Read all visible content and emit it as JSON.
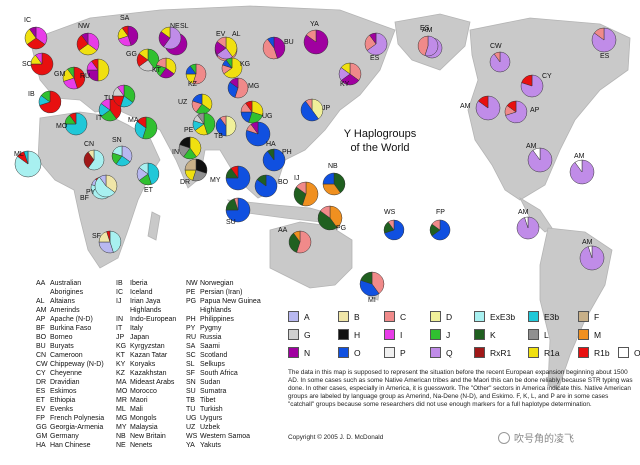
{
  "title_line1": "Y Haplogroups",
  "title_line2": "of the World",
  "colors": {
    "A": "#b8b8f0",
    "B": "#f0e6a8",
    "C": "#f08a8a",
    "D": "#f0f09a",
    "ExE3b": "#a8f0f0",
    "E3b": "#20c8d8",
    "F": "#c8b088",
    "G": "#d0d0d0",
    "H": "#101010",
    "I": "#e83ce8",
    "J": "#30c030",
    "K": "#206020",
    "L": "#909090",
    "M": "#f09020",
    "N": "#a000a0",
    "O": "#1050e0",
    "P": "#f0f0f0",
    "Q": "#c08ce8",
    "RxR1": "#a01818",
    "R1a": "#f0e010",
    "R1b": "#e81010",
    "Other": "#ffffff"
  },
  "legend": [
    {
      "key": "A",
      "label": "A"
    },
    {
      "key": "B",
      "label": "B"
    },
    {
      "key": "C",
      "label": "C"
    },
    {
      "key": "D",
      "label": "D"
    },
    {
      "key": "ExE3b",
      "label": "ExE3b"
    },
    {
      "key": "E3b",
      "label": "E3b"
    },
    {
      "key": "F",
      "label": "F"
    },
    {
      "key": "G",
      "label": "G"
    },
    {
      "key": "H",
      "label": "H"
    },
    {
      "key": "I",
      "label": "I"
    },
    {
      "key": "J",
      "label": "J"
    },
    {
      "key": "K",
      "label": "K"
    },
    {
      "key": "L",
      "label": "L"
    },
    {
      "key": "M",
      "label": "M"
    },
    {
      "key": "N",
      "label": "N"
    },
    {
      "key": "O",
      "label": "O"
    },
    {
      "key": "P",
      "label": "P"
    },
    {
      "key": "Q",
      "label": "Q"
    },
    {
      "key": "RxR1",
      "label": "RxR1"
    },
    {
      "key": "R1a",
      "label": "R1a"
    },
    {
      "key": "R1b",
      "label": "R1b"
    },
    {
      "key": "Other",
      "label": "Other"
    }
  ],
  "abbreviations_col1": [
    [
      "AA",
      "Australian"
    ],
    [
      "",
      "Aborigines"
    ],
    [
      "AL",
      "Altaians"
    ],
    [
      "AM",
      "Amerinds"
    ],
    [
      "AP",
      "Apache (N-D)"
    ],
    [
      "BF",
      "Burkina Faso"
    ],
    [
      "BO",
      "Borneo"
    ],
    [
      "BU",
      "Buryats"
    ],
    [
      "CN",
      "Cameroon"
    ],
    [
      "CW",
      "Chippeway (N-D)"
    ],
    [
      "CY",
      "Cheyenne"
    ],
    [
      "DR",
      "Dravidian"
    ],
    [
      "ES",
      "Eskimos"
    ],
    [
      "ET",
      "Ethiopia"
    ],
    [
      "EV",
      "Evenks"
    ],
    [
      "FP",
      "French Polynesia"
    ],
    [
      "GG",
      "Georgia-Armenia"
    ],
    [
      "GM",
      "Germany"
    ],
    [
      "HA",
      "Han Chinese"
    ]
  ],
  "abbreviations_col2": [
    [
      "IB",
      "Iberia"
    ],
    [
      "IC",
      "Iceland"
    ],
    [
      "IJ",
      "Irian Jaya"
    ],
    [
      "",
      "Highlands"
    ],
    [
      "IN",
      "Indo-European"
    ],
    [
      "IT",
      "Italy"
    ],
    [
      "JP",
      "Japan"
    ],
    [
      "KG",
      "Kyrgyzstan"
    ],
    [
      "KT",
      "Kazan Tatar"
    ],
    [
      "KY",
      "Koryaks"
    ],
    [
      "KZ",
      "Kazakhstan"
    ],
    [
      "MA",
      "Mideast Arabs"
    ],
    [
      "MO",
      "Morocco"
    ],
    [
      "MR",
      "Maori"
    ],
    [
      "ML",
      "Mali"
    ],
    [
      "MG",
      "Mongols"
    ],
    [
      "MY",
      "Malaysia"
    ],
    [
      "NB",
      "New Britain"
    ],
    [
      "NE",
      "Nenets"
    ]
  ],
  "abbreviations_col3": [
    [
      "NW",
      "Norwegian"
    ],
    [
      "PE",
      "Persian (Iran)"
    ],
    [
      "PG",
      "Papua New Guinea"
    ],
    [
      "",
      "Highlands"
    ],
    [
      "PH",
      "Philippines"
    ],
    [
      "PY",
      "Pygmy"
    ],
    [
      "RU",
      "Russia"
    ],
    [
      "SA",
      "Saami"
    ],
    [
      "SC",
      "Scotland"
    ],
    [
      "SL",
      "Selkups"
    ],
    [
      "SF",
      "South Africa"
    ],
    [
      "SN",
      "Sudan"
    ],
    [
      "SU",
      "Sumatra"
    ],
    [
      "TB",
      "Tibet"
    ],
    [
      "TU",
      "Turkish"
    ],
    [
      "UG",
      "Uygurs"
    ],
    [
      "UZ",
      "Uzbek"
    ],
    [
      "WS",
      "Western Samoa"
    ],
    [
      "YA",
      "Yakuts"
    ]
  ],
  "note": "The data in this map is supposed to represent the situation before the recent European expansion beginning about 1500 AD. In some cases such as some Native American tribes and the Maori this can be done reliably because STR typing was done. In other cases, especially in America, it is guesswork. The \"Other\" sectors in America indicate this. Native American groups are labeled by language group as Amerind, Na-Dene (N-D), and Eskimo. F, K, L, and P are in some cases \"catchall\" groups because some researchers did not use enough markers for a full haplotype determination.",
  "copyright": "Copyright © 2005 J. D. McDonald",
  "watermark": "吹号角的凌飞",
  "pies": [
    {
      "label": "IC",
      "s": [
        [
          "I",
          0.35
        ],
        [
          "R1b",
          0.3
        ],
        [
          "R1a",
          0.25
        ],
        [
          "N",
          0.1
        ]
      ]
    },
    {
      "label": "NW",
      "s": [
        [
          "I",
          0.35
        ],
        [
          "R1a",
          0.3
        ],
        [
          "R1b",
          0.25
        ],
        [
          "N",
          0.1
        ]
      ]
    },
    {
      "label": "SA",
      "s": [
        [
          "N",
          0.45
        ],
        [
          "I",
          0.25
        ],
        [
          "R1a",
          0.2
        ],
        [
          "R1b",
          0.1
        ]
      ]
    },
    {
      "label": "NE",
      "s": [
        [
          "N",
          0.75
        ],
        [
          "R1a",
          0.1
        ],
        [
          "Q",
          0.15
        ]
      ]
    },
    {
      "label": "EV",
      "s": [
        [
          "C",
          0.65
        ],
        [
          "N",
          0.2
        ],
        [
          "O",
          0.15
        ]
      ]
    },
    {
      "label": "YA",
      "s": [
        [
          "N",
          0.85
        ],
        [
          "C",
          0.15
        ]
      ]
    },
    {
      "label": "KY",
      "s": [
        [
          "C",
          0.35
        ],
        [
          "N",
          0.3
        ],
        [
          "Q",
          0.2
        ],
        [
          "R1a",
          0.15
        ]
      ]
    },
    {
      "label": "ES",
      "s": [
        [
          "Q",
          0.65
        ],
        [
          "C",
          0.25
        ],
        [
          "N",
          0.1
        ]
      ]
    },
    {
      "label": "AM",
      "s": [
        [
          "Q",
          0.65
        ],
        [
          "C",
          0.25
        ],
        [
          "Other",
          0.1
        ]
      ]
    },
    {
      "label": "ES",
      "s": [
        [
          "Q",
          0.55
        ],
        [
          "C",
          0.45
        ]
      ]
    },
    {
      "label": "ES",
      "s": [
        [
          "Q",
          0.85
        ],
        [
          "C",
          0.15
        ]
      ]
    },
    {
      "label": "CW",
      "s": [
        [
          "Q",
          0.9
        ],
        [
          "C",
          0.1
        ]
      ]
    },
    {
      "label": "AM",
      "s": [
        [
          "Q",
          0.85
        ],
        [
          "R1b",
          0.15
        ]
      ]
    },
    {
      "label": "CY",
      "s": [
        [
          "Q",
          0.8
        ],
        [
          "R1b",
          0.2
        ]
      ]
    },
    {
      "label": "AP",
      "s": [
        [
          "Q",
          0.7
        ],
        [
          "C",
          0.15
        ],
        [
          "R1b",
          0.15
        ]
      ]
    },
    {
      "label": "AM",
      "s": [
        [
          "Q",
          0.9
        ],
        [
          "Other",
          0.1
        ]
      ]
    },
    {
      "label": "AM",
      "s": [
        [
          "Q",
          0.9
        ],
        [
          "Other",
          0.1
        ]
      ]
    },
    {
      "label": "AM",
      "s": [
        [
          "Q",
          0.95
        ],
        [
          "Other",
          0.05
        ]
      ]
    },
    {
      "label": "AM",
      "s": [
        [
          "Q",
          0.95
        ],
        [
          "Other",
          0.05
        ]
      ]
    },
    {
      "label": "SC",
      "s": [
        [
          "R1b",
          0.75
        ],
        [
          "R1a",
          0.15
        ],
        [
          "I",
          0.1
        ]
      ]
    },
    {
      "label": "GM",
      "s": [
        [
          "R1b",
          0.45
        ],
        [
          "I",
          0.25
        ],
        [
          "R1a",
          0.2
        ],
        [
          "J",
          0.1
        ]
      ]
    },
    {
      "label": "IB",
      "s": [
        [
          "R1b",
          0.7
        ],
        [
          "E3b",
          0.15
        ],
        [
          "J",
          0.15
        ]
      ]
    },
    {
      "label": "IT",
      "s": [
        [
          "R1b",
          0.4
        ],
        [
          "J",
          0.25
        ],
        [
          "E3b",
          0.2
        ],
        [
          "I",
          0.15
        ]
      ]
    },
    {
      "label": "RU",
      "s": [
        [
          "R1a",
          0.5
        ],
        [
          "N",
          0.25
        ],
        [
          "I",
          0.15
        ],
        [
          "R1b",
          0.1
        ]
      ]
    },
    {
      "label": "GG",
      "s": [
        [
          "J",
          0.4
        ],
        [
          "G",
          0.25
        ],
        [
          "R1b",
          0.2
        ],
        [
          "R1a",
          0.15
        ]
      ]
    },
    {
      "label": "TU",
      "s": [
        [
          "J",
          0.35
        ],
        [
          "E3b",
          0.2
        ],
        [
          "R1b",
          0.2
        ],
        [
          "G",
          0.15
        ],
        [
          "I",
          0.1
        ]
      ]
    },
    {
      "label": "KT",
      "s": [
        [
          "R1a",
          0.35
        ],
        [
          "N",
          0.25
        ],
        [
          "J",
          0.2
        ],
        [
          "C",
          0.2
        ]
      ]
    },
    {
      "label": "KZ",
      "s": [
        [
          "C",
          0.55
        ],
        [
          "R1a",
          0.2
        ],
        [
          "O",
          0.15
        ],
        [
          "J",
          0.1
        ]
      ]
    },
    {
      "label": "SL",
      "s": [
        [
          "Q",
          0.6
        ],
        [
          "N",
          0.25
        ],
        [
          "R1a",
          0.15
        ]
      ]
    },
    {
      "label": "AL",
      "s": [
        [
          "R1a",
          0.4
        ],
        [
          "Q",
          0.25
        ],
        [
          "N",
          0.2
        ],
        [
          "C",
          0.15
        ]
      ]
    },
    {
      "label": "KG",
      "s": [
        [
          "R1a",
          0.65
        ],
        [
          "C",
          0.15
        ],
        [
          "O",
          0.1
        ],
        [
          "J",
          0.1
        ]
      ]
    },
    {
      "label": "UZ",
      "s": [
        [
          "R1a",
          0.35
        ],
        [
          "J",
          0.25
        ],
        [
          "C",
          0.2
        ],
        [
          "O",
          0.2
        ]
      ]
    },
    {
      "label": "BU",
      "s": [
        [
          "N",
          0.45
        ],
        [
          "C",
          0.45
        ],
        [
          "O",
          0.1
        ]
      ]
    },
    {
      "label": "MG",
      "s": [
        [
          "C",
          0.55
        ],
        [
          "O",
          0.3
        ],
        [
          "N",
          0.15
        ]
      ]
    },
    {
      "label": "UG",
      "s": [
        [
          "R1a",
          0.3
        ],
        [
          "J",
          0.25
        ],
        [
          "O",
          0.2
        ],
        [
          "C",
          0.15
        ],
        [
          "R1b",
          0.1
        ]
      ]
    },
    {
      "label": "PE",
      "s": [
        [
          "J",
          0.45
        ],
        [
          "R1a",
          0.2
        ],
        [
          "E3b",
          0.15
        ],
        [
          "G",
          0.1
        ],
        [
          "L",
          0.1
        ]
      ]
    },
    {
      "label": "TB",
      "s": [
        [
          "D",
          0.5
        ],
        [
          "O",
          0.4
        ],
        [
          "C",
          0.1
        ]
      ]
    },
    {
      "label": "IN",
      "s": [
        [
          "R1a",
          0.4
        ],
        [
          "J",
          0.2
        ],
        [
          "L",
          0.2
        ],
        [
          "H",
          0.2
        ]
      ]
    },
    {
      "label": "DR",
      "s": [
        [
          "H",
          0.3
        ],
        [
          "L",
          0.25
        ],
        [
          "R1a",
          0.2
        ],
        [
          "F",
          0.25
        ]
      ]
    },
    {
      "label": "HA",
      "s": [
        [
          "O",
          0.8
        ],
        [
          "C",
          0.1
        ],
        [
          "N",
          0.1
        ]
      ]
    },
    {
      "label": "JP",
      "s": [
        [
          "D",
          0.4
        ],
        [
          "O",
          0.5
        ],
        [
          "C",
          0.1
        ]
      ]
    },
    {
      "label": "MO",
      "s": [
        [
          "E3b",
          0.75
        ],
        [
          "J",
          0.15
        ],
        [
          "R1b",
          0.1
        ]
      ]
    },
    {
      "label": "MA",
      "s": [
        [
          "J",
          0.55
        ],
        [
          "E3b",
          0.3
        ],
        [
          "R1b",
          0.15
        ]
      ]
    },
    {
      "label": "ML",
      "s": [
        [
          "ExE3b",
          0.85
        ],
        [
          "R1b",
          0.1
        ],
        [
          "E3b",
          0.05
        ]
      ]
    },
    {
      "label": "BF",
      "s": [
        [
          "ExE3b",
          0.8
        ],
        [
          "A",
          0.1
        ],
        [
          "R1b",
          0.1
        ]
      ]
    },
    {
      "label": "SN",
      "s": [
        [
          "A",
          0.35
        ],
        [
          "E3b",
          0.25
        ],
        [
          "J",
          0.2
        ],
        [
          "ExE3b",
          0.2
        ]
      ]
    },
    {
      "label": "CN",
      "s": [
        [
          "ExE3b",
          0.6
        ],
        [
          "RxR1",
          0.3
        ],
        [
          "B",
          0.1
        ]
      ]
    },
    {
      "label": "ET",
      "s": [
        [
          "E3b",
          0.45
        ],
        [
          "J",
          0.2
        ],
        [
          "A",
          0.2
        ],
        [
          "ExE3b",
          0.15
        ]
      ]
    },
    {
      "label": "PY",
      "s": [
        [
          "B",
          0.35
        ],
        [
          "ExE3b",
          0.55
        ],
        [
          "A",
          0.1
        ]
      ]
    },
    {
      "label": "SF",
      "s": [
        [
          "ExE3b",
          0.45
        ],
        [
          "A",
          0.3
        ],
        [
          "B",
          0.2
        ],
        [
          "R1b",
          0.05
        ]
      ]
    },
    {
      "label": "MY",
      "s": [
        [
          "O",
          0.75
        ],
        [
          "K",
          0.15
        ],
        [
          "R1b",
          0.1
        ]
      ]
    },
    {
      "label": "PH",
      "s": [
        [
          "O",
          0.9
        ],
        [
          "K",
          0.1
        ]
      ]
    },
    {
      "label": "BO",
      "s": [
        [
          "O",
          0.85
        ],
        [
          "K",
          0.15
        ]
      ]
    },
    {
      "label": "SU",
      "s": [
        [
          "O",
          0.75
        ],
        [
          "K",
          0.2
        ],
        [
          "C",
          0.05
        ]
      ]
    },
    {
      "label": "IJ",
      "s": [
        [
          "M",
          0.55
        ],
        [
          "K",
          0.3
        ],
        [
          "C",
          0.15
        ]
      ]
    },
    {
      "label": "NB",
      "s": [
        [
          "K",
          0.4
        ],
        [
          "M",
          0.35
        ],
        [
          "O",
          0.25
        ]
      ]
    },
    {
      "label": "PG",
      "s": [
        [
          "M",
          0.4
        ],
        [
          "K",
          0.45
        ],
        [
          "C",
          0.15
        ]
      ]
    },
    {
      "label": "AA",
      "s": [
        [
          "C",
          0.55
        ],
        [
          "K",
          0.35
        ],
        [
          "M",
          0.1
        ]
      ]
    },
    {
      "label": "WS",
      "s": [
        [
          "O",
          0.7
        ],
        [
          "K",
          0.2
        ],
        [
          "C",
          0.1
        ]
      ]
    },
    {
      "label": "FP",
      "s": [
        [
          "O",
          0.65
        ],
        [
          "K",
          0.2
        ],
        [
          "C",
          0.15
        ]
      ]
    },
    {
      "label": "MI",
      "s": [
        [
          "C",
          0.4
        ],
        [
          "O",
          0.4
        ],
        [
          "K",
          0.2
        ]
      ]
    }
  ]
}
